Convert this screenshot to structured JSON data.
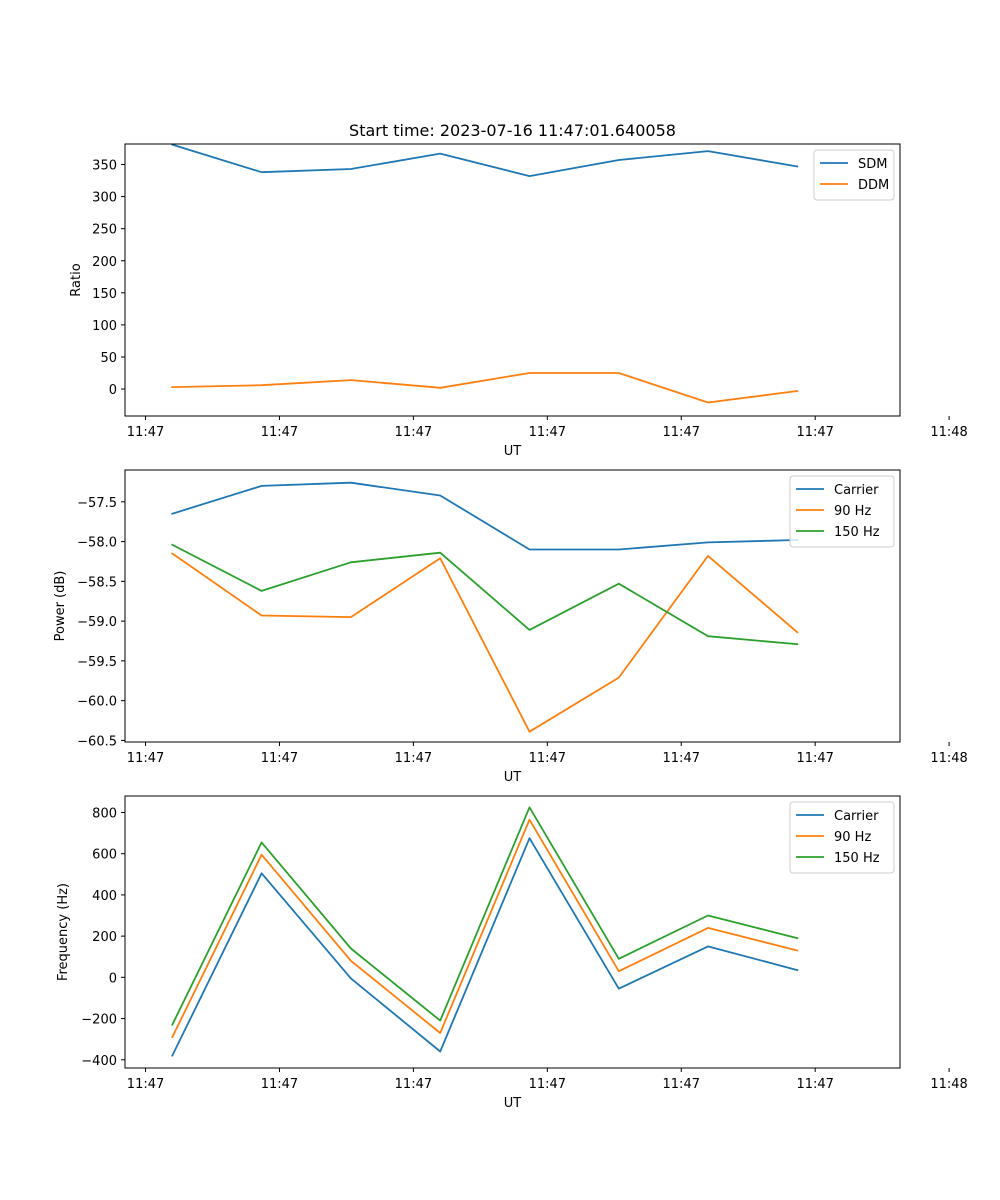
{
  "figure_title": "Start time: 2023-07-16 11:47:01.640058",
  "colors": {
    "blue": "#1f77b4",
    "orange": "#ff7f0e",
    "green": "#2ca02c"
  },
  "chart_data": [
    {
      "type": "line",
      "title": "Start time: 2023-07-16 11:47:01.640058",
      "xlabel": "UT",
      "ylabel": "Ratio",
      "x": [
        1,
        2,
        3,
        4,
        5,
        6,
        7,
        8
      ],
      "xlim": [
        0.47,
        9.15
      ],
      "x_ticks": [
        0.7,
        2.2,
        3.7,
        5.2,
        6.7,
        8.2,
        9.7
      ],
      "x_tick_labels": [
        "11:47",
        "11:47",
        "11:47",
        "11:47",
        "11:47",
        "11:47",
        "11:48"
      ],
      "ylim": [
        -42,
        382
      ],
      "y_ticks": [
        0,
        50,
        100,
        150,
        200,
        250,
        300,
        350
      ],
      "y_tick_labels": [
        "0",
        "50",
        "100",
        "150",
        "200",
        "250",
        "300",
        "350"
      ],
      "legend": "top-right",
      "series": [
        {
          "name": "SDM",
          "color": "#1f77b4",
          "values": [
            381,
            338,
            343,
            367,
            332,
            357,
            371,
            347
          ]
        },
        {
          "name": "DDM",
          "color": "#ff7f0e",
          "values": [
            3,
            6,
            14,
            2,
            25,
            25,
            -21,
            -3
          ]
        }
      ]
    },
    {
      "type": "line",
      "xlabel": "UT",
      "ylabel": "Power (dB)",
      "x": [
        1,
        2,
        3,
        4,
        5,
        6,
        7,
        8
      ],
      "xlim": [
        0.47,
        9.15
      ],
      "x_ticks": [
        0.7,
        2.2,
        3.7,
        5.2,
        6.7,
        8.2,
        9.7
      ],
      "x_tick_labels": [
        "11:47",
        "11:47",
        "11:47",
        "11:47",
        "11:47",
        "11:47",
        "11:48"
      ],
      "ylim": [
        -60.52,
        -57.1
      ],
      "y_ticks": [
        -57.5,
        -58.0,
        -58.5,
        -59.0,
        -59.5,
        -60.0,
        -60.5
      ],
      "y_tick_labels": [
        "−57.5",
        "−58.0",
        "−58.5",
        "−59.0",
        "−59.5",
        "−60.0",
        "−60.5"
      ],
      "legend": "top-right",
      "series": [
        {
          "name": "Carrier",
          "color": "#1f77b4",
          "values": [
            -57.65,
            -57.3,
            -57.26,
            -57.42,
            -58.1,
            -58.1,
            -58.01,
            -57.98
          ]
        },
        {
          "name": "90 Hz",
          "color": "#ff7f0e",
          "values": [
            -58.15,
            -58.93,
            -58.95,
            -58.21,
            -60.39,
            -59.71,
            -58.18,
            -59.14
          ]
        },
        {
          "name": "150 Hz",
          "color": "#2ca02c",
          "values": [
            -58.04,
            -58.62,
            -58.26,
            -58.14,
            -59.11,
            -58.53,
            -59.19,
            -59.29
          ]
        }
      ]
    },
    {
      "type": "line",
      "xlabel": "UT",
      "ylabel": "Frequency (Hz)",
      "x": [
        1,
        2,
        3,
        4,
        5,
        6,
        7,
        8
      ],
      "xlim": [
        0.47,
        9.15
      ],
      "x_ticks": [
        0.7,
        2.2,
        3.7,
        5.2,
        6.7,
        8.2,
        9.7
      ],
      "x_tick_labels": [
        "11:47",
        "11:47",
        "11:47",
        "11:47",
        "11:47",
        "11:47",
        "11:48"
      ],
      "ylim": [
        -440,
        880
      ],
      "y_ticks": [
        800,
        600,
        400,
        200,
        0,
        -200,
        -400
      ],
      "y_tick_labels": [
        "800",
        "600",
        "400",
        "200",
        "0",
        "−200",
        "−400"
      ],
      "legend": "top-right",
      "series": [
        {
          "name": "Carrier",
          "color": "#1f77b4",
          "values": [
            -380,
            505,
            -5,
            -360,
            675,
            -55,
            150,
            35
          ]
        },
        {
          "name": "90 Hz",
          "color": "#ff7f0e",
          "values": [
            -290,
            595,
            80,
            -270,
            765,
            30,
            240,
            130
          ]
        },
        {
          "name": "150 Hz",
          "color": "#2ca02c",
          "values": [
            -230,
            655,
            140,
            -210,
            825,
            90,
            300,
            190
          ]
        }
      ]
    }
  ]
}
